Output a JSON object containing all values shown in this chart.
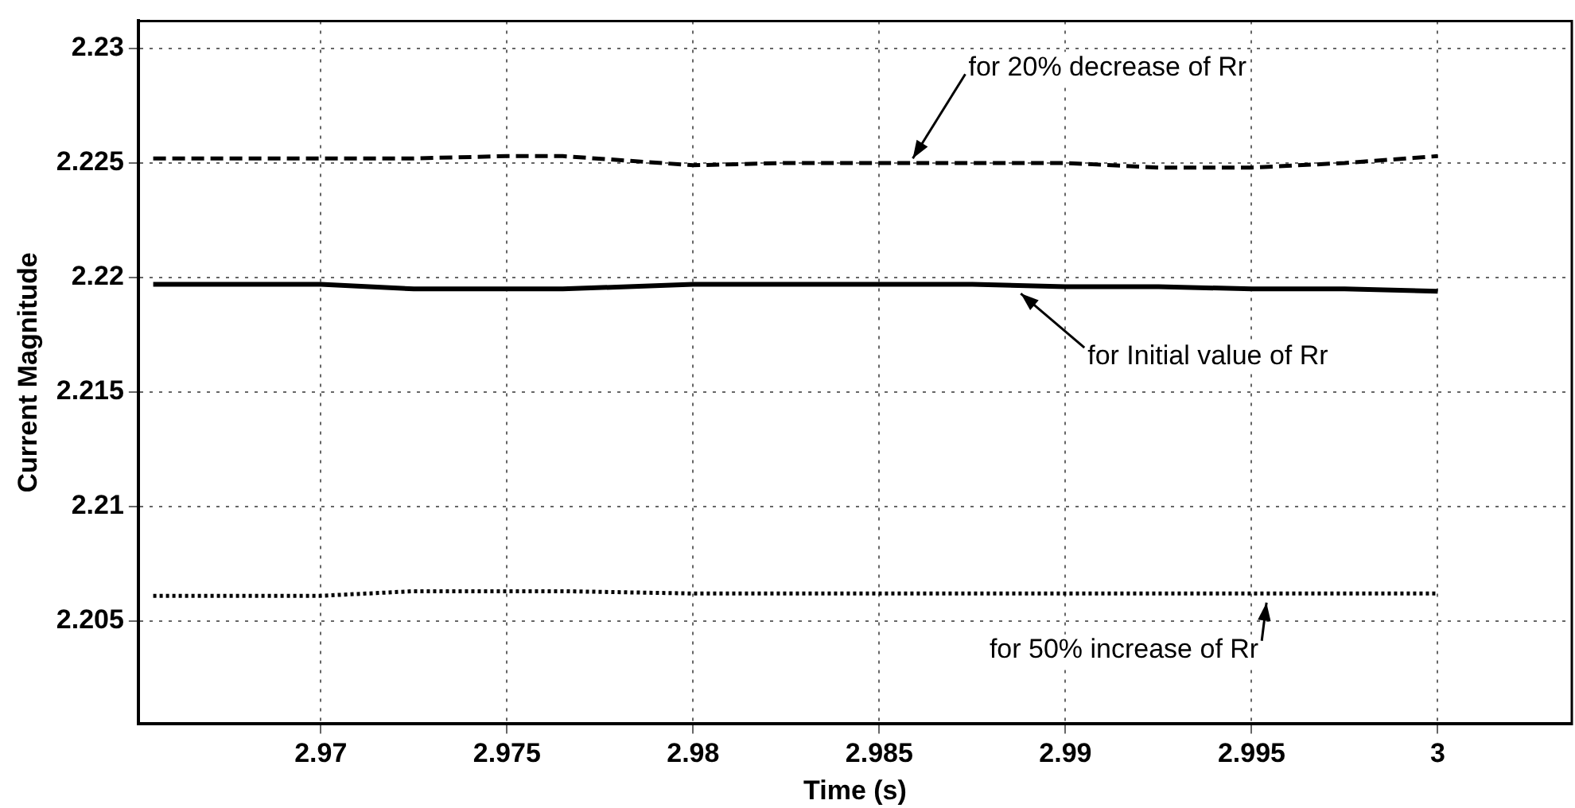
{
  "chart_data": {
    "type": "line",
    "xlabel": "Time (s)",
    "ylabel": "Current Magnitude",
    "x": [
      2.9655,
      2.97,
      2.9725,
      2.975,
      2.9765,
      2.98,
      2.9825,
      2.985,
      2.9875,
      2.99,
      2.9925,
      2.995,
      2.9975,
      3.0
    ],
    "series": [
      {
        "color": "#000000",
        "line_style": "dashed",
        "values": [
          2.2252,
          2.2252,
          2.2252,
          2.2253,
          2.2253,
          2.2249,
          2.225,
          2.225,
          2.225,
          2.225,
          2.2248,
          2.2248,
          2.225,
          2.2253
        ]
      },
      {
        "color": "#000000",
        "line_style": "solid",
        "values": [
          2.2197,
          2.2197,
          2.2195,
          2.2195,
          2.2195,
          2.2197,
          2.2197,
          2.2197,
          2.2197,
          2.2196,
          2.2196,
          2.2195,
          2.2195,
          2.2194
        ]
      },
      {
        "color": "#000000",
        "line_style": "dotted",
        "values": [
          2.2061,
          2.2061,
          2.2063,
          2.2063,
          2.2063,
          2.2062,
          2.2062,
          2.2062,
          2.2062,
          2.2062,
          2.2062,
          2.2062,
          2.2062,
          2.2062
        ]
      }
    ],
    "xlim": [
      2.9651,
      3.0036
    ],
    "xticks": [
      2.97,
      2.975,
      2.98,
      2.985,
      2.99,
      2.995,
      3
    ],
    "ylim": [
      2.2005,
      2.2312
    ],
    "yticks": [
      2.205,
      2.21,
      2.215,
      2.22,
      2.225,
      2.23
    ],
    "grid": true,
    "legend": false,
    "marker": "none",
    "annotations": [
      {
        "text": "for 20% decrease of Rr",
        "x": 2.9859,
        "y": 2.2252
      },
      {
        "text": "for Initial value of Rr",
        "x": 2.9888,
        "y": 2.2193
      },
      {
        "text": "for 50% increase of Rr",
        "x": 2.9954,
        "y": 2.2058
      }
    ]
  }
}
